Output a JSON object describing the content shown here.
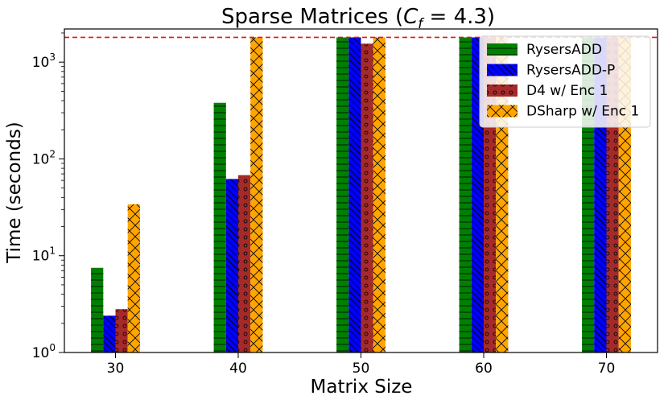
{
  "chart_data": {
    "type": "bar",
    "title_main": "Sparse Matrices (",
    "title_var": "C",
    "title_sub": "f",
    "title_rest": " = 4.3)",
    "xlabel": "Matrix Size",
    "ylabel": "Time (seconds)",
    "yscale": "log",
    "ylim": [
      1,
      2200
    ],
    "timeout_line": 1800,
    "categories": [
      "30",
      "40",
      "50",
      "60",
      "70"
    ],
    "y_ticks": [
      {
        "value": 1,
        "base": "10",
        "exp": "0"
      },
      {
        "value": 10,
        "base": "10",
        "exp": "1"
      },
      {
        "value": 100,
        "base": "10",
        "exp": "2"
      },
      {
        "value": 1000,
        "base": "10",
        "exp": "3"
      }
    ],
    "series": [
      {
        "name": "RysersADD",
        "color": "#008000",
        "hatch": "horizontal",
        "values": [
          7.5,
          380,
          1800,
          1800,
          1800
        ]
      },
      {
        "name": "RysersADD-P",
        "color": "#0000ff",
        "hatch": "backslash",
        "values": [
          2.4,
          62,
          1800,
          1800,
          1800
        ]
      },
      {
        "name": "D4 w/ Enc 1",
        "color": "#a52a2a",
        "hatch": "circles",
        "values": [
          2.8,
          68,
          1550,
          1800,
          1800
        ]
      },
      {
        "name": "DSharp w/ Enc 1",
        "color": "#ffa500",
        "hatch": "cross",
        "values": [
          34,
          1800,
          1800,
          1800,
          1800
        ]
      }
    ],
    "legend_position": "top-right"
  }
}
